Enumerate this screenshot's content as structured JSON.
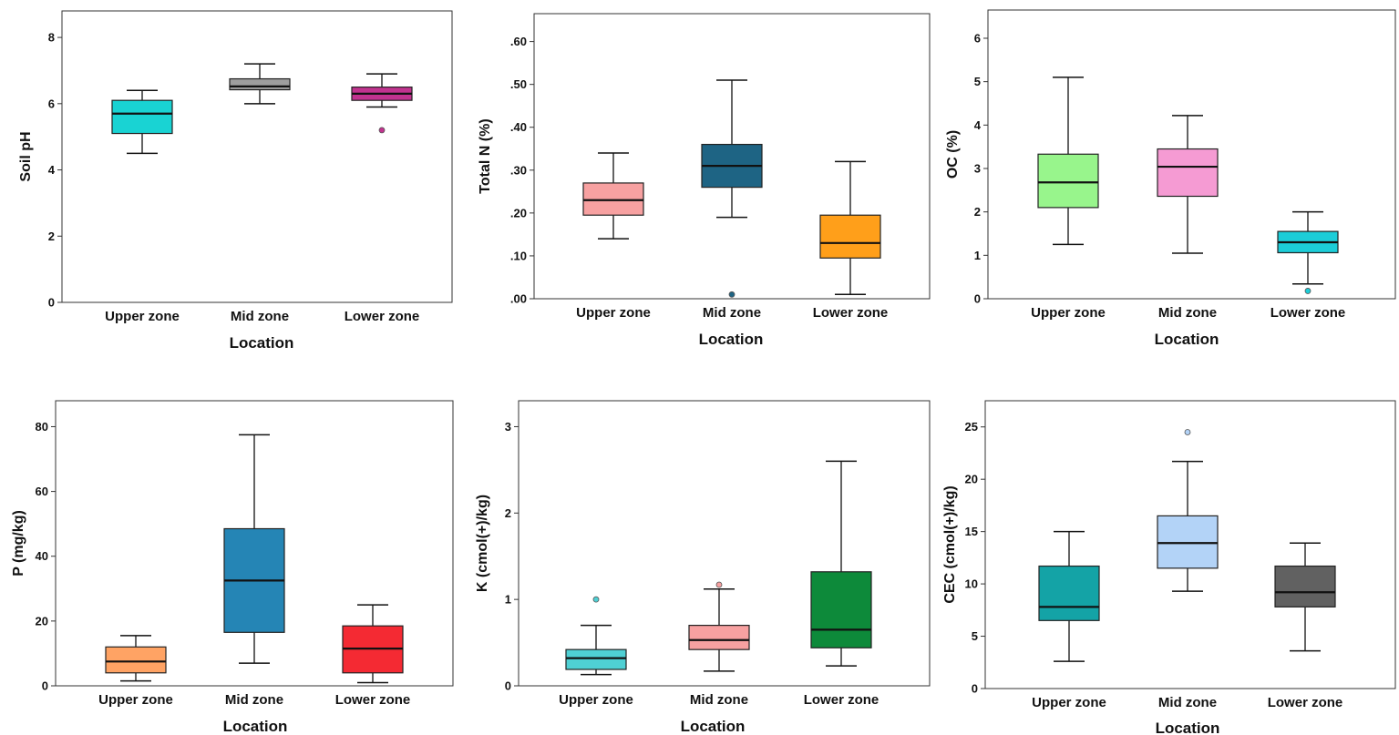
{
  "chart_data": [
    {
      "type": "boxplot",
      "ylabel": "Soil pH",
      "xlabel": "Location",
      "ylim": [
        0,
        8.8
      ],
      "yticks": [
        0,
        2,
        4,
        6,
        8
      ],
      "ytick_labels": [
        "0",
        "2",
        "4",
        "6",
        "8"
      ],
      "categories": [
        "Upper zone",
        "Mid zone",
        "Lower zone"
      ],
      "boxes": [
        {
          "category": "Upper zone",
          "min": 4.5,
          "q1": 5.1,
          "median": 5.7,
          "q3": 6.1,
          "max": 6.4,
          "outliers": [],
          "color": "#19d3d3"
        },
        {
          "category": "Mid zone",
          "min": 6.0,
          "q1": 6.42,
          "median": 6.52,
          "q3": 6.75,
          "max": 7.2,
          "outliers": [],
          "color": "#9e9e9e"
        },
        {
          "category": "Lower zone",
          "min": 5.9,
          "q1": 6.1,
          "median": 6.3,
          "q3": 6.5,
          "max": 6.9,
          "outliers": [
            5.2
          ],
          "color": "#c2338f"
        }
      ]
    },
    {
      "type": "boxplot",
      "ylabel": "Total N (%)",
      "xlabel": "Location",
      "ylim": [
        0,
        0.665
      ],
      "yticks": [
        0,
        0.1,
        0.2,
        0.3,
        0.4,
        0.5,
        0.6
      ],
      "ytick_labels": [
        ".00",
        ".10",
        ".20",
        ".30",
        ".40",
        ".50",
        ".60"
      ],
      "categories": [
        "Upper zone",
        "Mid zone",
        "Lower zone"
      ],
      "boxes": [
        {
          "category": "Upper zone",
          "min": 0.14,
          "q1": 0.195,
          "median": 0.23,
          "q3": 0.27,
          "max": 0.34,
          "outliers": [],
          "color": "#f7a1a1"
        },
        {
          "category": "Mid zone",
          "min": 0.19,
          "q1": 0.26,
          "median": 0.31,
          "q3": 0.36,
          "max": 0.51,
          "outliers": [
            0.01
          ],
          "color": "#1e6484"
        },
        {
          "category": "Lower zone",
          "min": 0.01,
          "q1": 0.095,
          "median": 0.13,
          "q3": 0.195,
          "max": 0.32,
          "outliers": [],
          "color": "#ff9f1a"
        }
      ]
    },
    {
      "type": "boxplot",
      "ylabel": "OC (%)",
      "xlabel": "Location",
      "ylim": [
        0,
        6.65
      ],
      "yticks": [
        0,
        1,
        2,
        3,
        4,
        5,
        6
      ],
      "ytick_labels": [
        "0",
        "1",
        "2",
        "3",
        "4",
        "5",
        "6"
      ],
      "categories": [
        "Upper zone",
        "Mid zone",
        "Lower zone"
      ],
      "boxes": [
        {
          "category": "Upper zone",
          "min": 1.25,
          "q1": 2.1,
          "median": 2.68,
          "q3": 3.33,
          "max": 5.1,
          "outliers": [],
          "color": "#98f58c"
        },
        {
          "category": "Mid zone",
          "min": 1.05,
          "q1": 2.36,
          "median": 3.04,
          "q3": 3.45,
          "max": 4.22,
          "outliers": [],
          "color": "#f59bd3"
        },
        {
          "category": "Lower zone",
          "min": 0.34,
          "q1": 1.06,
          "median": 1.3,
          "q3": 1.55,
          "max": 2.0,
          "outliers": [
            0.18
          ],
          "color": "#1ccdd8"
        }
      ]
    },
    {
      "type": "boxplot",
      "ylabel": "P (mg/kg)",
      "xlabel": "Location",
      "ylim": [
        0,
        88
      ],
      "yticks": [
        0,
        20,
        40,
        60,
        80
      ],
      "ytick_labels": [
        "0",
        "20",
        "40",
        "60",
        "80"
      ],
      "categories": [
        "Upper zone",
        "Mid zone",
        "Lower zone"
      ],
      "boxes": [
        {
          "category": "Upper zone",
          "min": 1.5,
          "q1": 4,
          "median": 7.5,
          "q3": 12,
          "max": 15.5,
          "outliers": [],
          "color": "#ffa364"
        },
        {
          "category": "Mid zone",
          "min": 7,
          "q1": 16.5,
          "median": 32.5,
          "q3": 48.5,
          "max": 77.5,
          "outliers": [],
          "color": "#2585b5"
        },
        {
          "category": "Lower zone",
          "min": 1,
          "q1": 4,
          "median": 11.5,
          "q3": 18.5,
          "max": 25,
          "outliers": [],
          "color": "#f42a33"
        }
      ]
    },
    {
      "type": "boxplot",
      "ylabel": "K (cmol(+)/kg)",
      "xlabel": "Location",
      "ylim": [
        0,
        3.3
      ],
      "yticks": [
        0,
        1,
        2,
        3
      ],
      "ytick_labels": [
        "0",
        "1",
        "2",
        "3"
      ],
      "categories": [
        "Upper zone",
        "Mid zone",
        "Lower zone"
      ],
      "boxes": [
        {
          "category": "Upper zone",
          "min": 0.13,
          "q1": 0.19,
          "median": 0.32,
          "q3": 0.42,
          "max": 0.7,
          "outliers": [
            1.0
          ],
          "color": "#4fd0d4"
        },
        {
          "category": "Mid zone",
          "min": 0.17,
          "q1": 0.42,
          "median": 0.53,
          "q3": 0.7,
          "max": 1.12,
          "outliers": [
            1.17
          ],
          "color": "#f7a1a1"
        },
        {
          "category": "Lower zone",
          "min": 0.23,
          "q1": 0.44,
          "median": 0.65,
          "q3": 1.32,
          "max": 2.6,
          "outliers": [],
          "color": "#0d8a3a"
        }
      ]
    },
    {
      "type": "boxplot",
      "ylabel": "CEC (cmol(+)/kg)",
      "xlabel": "Location",
      "ylim": [
        0,
        27.5
      ],
      "yticks": [
        0,
        5,
        10,
        15,
        20,
        25
      ],
      "ytick_labels": [
        "0",
        "5",
        "10",
        "15",
        "20",
        "25"
      ],
      "categories": [
        "Upper zone",
        "Mid zone",
        "Lower zone"
      ],
      "boxes": [
        {
          "category": "Upper zone",
          "min": 2.6,
          "q1": 6.5,
          "median": 7.8,
          "q3": 11.7,
          "max": 15.0,
          "outliers": [],
          "color": "#14a3a6"
        },
        {
          "category": "Mid zone",
          "min": 9.3,
          "q1": 11.5,
          "median": 13.9,
          "q3": 16.5,
          "max": 21.7,
          "outliers": [
            24.5
          ],
          "color": "#b3d3f7"
        },
        {
          "category": "Lower zone",
          "min": 3.6,
          "q1": 7.8,
          "median": 9.2,
          "q3": 11.7,
          "max": 13.9,
          "outliers": [],
          "color": "#616161"
        }
      ]
    }
  ]
}
